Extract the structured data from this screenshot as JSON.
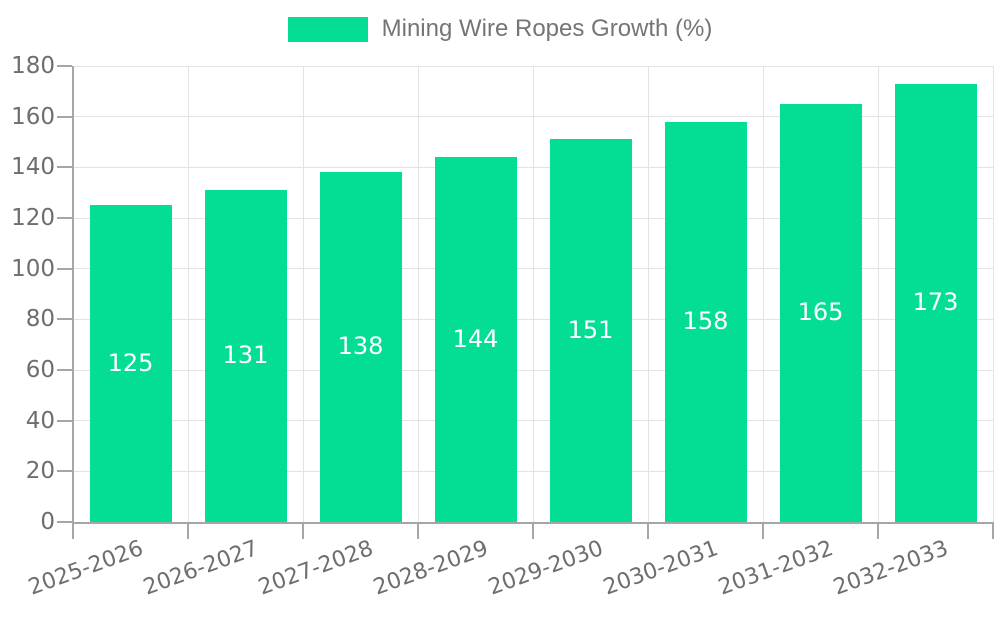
{
  "legend": {
    "label": "Mining Wire Ropes Growth (%)",
    "swatch_color": "#04de94"
  },
  "chart_data": {
    "type": "bar",
    "title": "Mining Wire Ropes Growth (%)",
    "categories": [
      "2025-2026",
      "2026-2027",
      "2027-2028",
      "2028-2029",
      "2029-2030",
      "2030-2031",
      "2031-2032",
      "2032-2033"
    ],
    "values": [
      125,
      131,
      138,
      144,
      151,
      158,
      165,
      173
    ],
    "bar_labels": [
      "125",
      "131",
      "138",
      "144",
      "151",
      "158",
      "165",
      "173"
    ],
    "xlabel": "",
    "ylabel": "",
    "ylim": [
      0,
      180
    ],
    "ytick_step": 20,
    "ytick_labels": [
      "0",
      "20",
      "40",
      "60",
      "80",
      "100",
      "120",
      "140",
      "160",
      "180"
    ],
    "grid": true,
    "legend_position": "top-center",
    "bar_color": "#04de94",
    "bar_label_color": "#ffffff",
    "grid_color": "#e3e3e3",
    "axis_color": "#a6a6a6",
    "tick_text_color": "#6e6e6e"
  }
}
